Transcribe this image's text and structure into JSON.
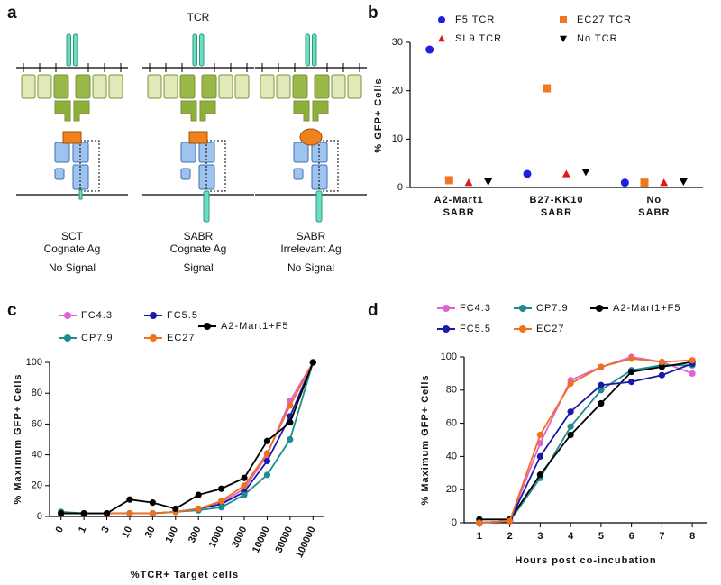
{
  "diagram": {
    "label": "a",
    "tcr_label": "TCR",
    "columns": [
      {
        "lines": [
          "SCT",
          "Cognate Ag"
        ],
        "signal": "No Signal"
      },
      {
        "lines": [
          "SABR",
          "Cognate Ag"
        ],
        "signal": "Signal"
      },
      {
        "lines": [
          "SABR",
          "Irrelevant Ag"
        ],
        "signal": "No Signal"
      }
    ]
  },
  "chart_data": [
    {
      "label": "b",
      "type": "scatter",
      "ylabel": "% GFP+ Cells",
      "categories": [
        [
          "A2-Mart1",
          "SABR"
        ],
        [
          "B27-KK10",
          "SABR"
        ],
        [
          "No",
          "SABR"
        ]
      ],
      "ylim": [
        0,
        30
      ],
      "yticks": [
        0,
        10,
        20,
        30
      ],
      "grid": false,
      "legend": "top",
      "series": [
        {
          "name": "F5 TCR",
          "color": "#1f1fe0",
          "marker": "circle",
          "values": [
            28.5,
            2.8,
            1.0
          ]
        },
        {
          "name": "EC27 TCR",
          "color": "#f07820",
          "marker": "square",
          "values": [
            1.5,
            20.5,
            1.0
          ]
        },
        {
          "name": "SL9 TCR",
          "color": "#e01818",
          "marker": "triangle-up",
          "values": [
            1.0,
            2.8,
            1.0
          ]
        },
        {
          "name": "No TCR",
          "color": "#000000",
          "marker": "triangle-down",
          "values": [
            1.2,
            3.2,
            1.2
          ]
        }
      ]
    },
    {
      "label": "c",
      "type": "line",
      "ylabel": "% Maximum GFP+ Cells",
      "xlabel": "%TCR+ Target cells",
      "categories": [
        "0",
        "1",
        "3",
        "10",
        "30",
        "100",
        "300",
        "1000",
        "3000",
        "10000",
        "30000",
        "100000"
      ],
      "ylim": [
        0,
        100
      ],
      "yticks": [
        0,
        20,
        40,
        60,
        80,
        100
      ],
      "grid": false,
      "legend": "top",
      "series": [
        {
          "name": "FC4.3",
          "color": "#e060d8",
          "marker": "circle",
          "values": [
            2,
            2,
            2,
            2,
            2,
            3,
            5,
            9,
            18,
            40,
            75,
            100
          ]
        },
        {
          "name": "FC5.5",
          "color": "#1a1aa8",
          "marker": "circle",
          "values": [
            2,
            2,
            2,
            2,
            2,
            3,
            5,
            8,
            16,
            36,
            65,
            100
          ]
        },
        {
          "name": "CP7.9",
          "color": "#1f8a90",
          "marker": "circle",
          "values": [
            3,
            2,
            2,
            2,
            2,
            3,
            4,
            6,
            14,
            27,
            50,
            100
          ]
        },
        {
          "name": "EC27",
          "color": "#f07020",
          "marker": "circle",
          "values": [
            2,
            2,
            2,
            2,
            2,
            3,
            5,
            10,
            20,
            41,
            72,
            100
          ]
        },
        {
          "name": "A2-Mart1+F5",
          "color": "#000000",
          "marker": "circle",
          "values": [
            2,
            2,
            2,
            11,
            9,
            5,
            14,
            18,
            25,
            49,
            61,
            100
          ]
        }
      ]
    },
    {
      "label": "d",
      "type": "line",
      "ylabel": "% Maximum GFP+ Cells",
      "xlabel": "Hours post co-incubation",
      "x": [
        1,
        2,
        3,
        4,
        5,
        6,
        7,
        8
      ],
      "xlim": [
        0.5,
        8.5
      ],
      "xticks": [
        1,
        2,
        3,
        4,
        5,
        6,
        7,
        8
      ],
      "ylim": [
        0,
        100
      ],
      "yticks": [
        0,
        20,
        40,
        60,
        80,
        100
      ],
      "grid": false,
      "legend": "top",
      "series": [
        {
          "name": "FC4.3",
          "color": "#e060d8",
          "marker": "circle",
          "values": [
            0,
            1,
            48,
            86,
            94,
            100,
            97,
            90
          ]
        },
        {
          "name": "CP7.9",
          "color": "#1f8a90",
          "marker": "circle",
          "values": [
            0,
            1,
            27,
            58,
            80,
            92,
            95,
            95
          ]
        },
        {
          "name": "A2-Mart1+F5",
          "color": "#000000",
          "marker": "circle",
          "values": [
            2,
            2,
            29,
            53,
            72,
            91,
            94,
            97
          ]
        },
        {
          "name": "FC5.5",
          "color": "#1a1aa8",
          "marker": "circle",
          "values": [
            0,
            1,
            40,
            67,
            83,
            85,
            89,
            96
          ]
        },
        {
          "name": "EC27",
          "color": "#f07020",
          "marker": "circle",
          "values": [
            0,
            1,
            53,
            84,
            94,
            99,
            97,
            98
          ]
        }
      ]
    }
  ]
}
